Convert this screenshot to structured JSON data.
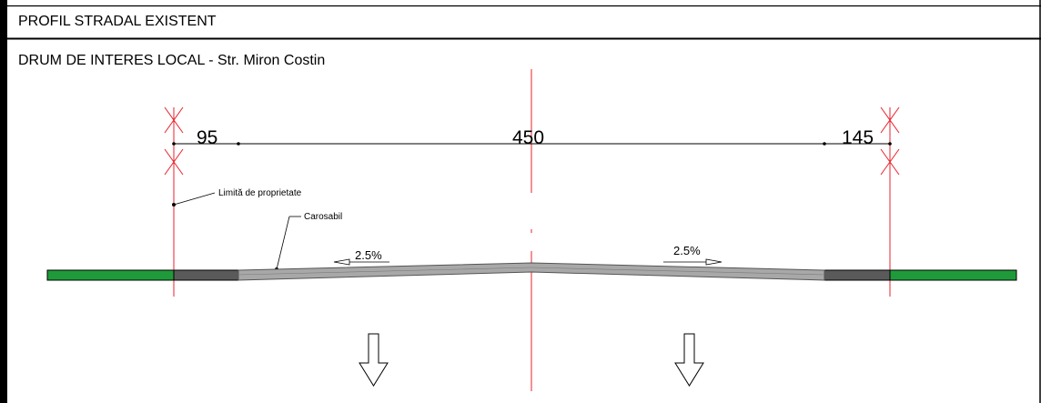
{
  "header": {
    "title": "PROFIL STRADAL EXISTENT",
    "subtitle": "DRUM DE INTERES LOCAL - Str. Miron Costin"
  },
  "dimensions": {
    "left": "95",
    "center": "450",
    "right": "145"
  },
  "labels": {
    "property_limit": "Limită de proprietate",
    "carriageway": "Carosabil"
  },
  "slopes": {
    "left": "2.5%",
    "right": "2.5%"
  },
  "colors": {
    "axis_red": "#e8212b",
    "green_strip": "#1f9a3a",
    "dark_strip": "#5a5a5a",
    "road": "#a8a8a8"
  }
}
